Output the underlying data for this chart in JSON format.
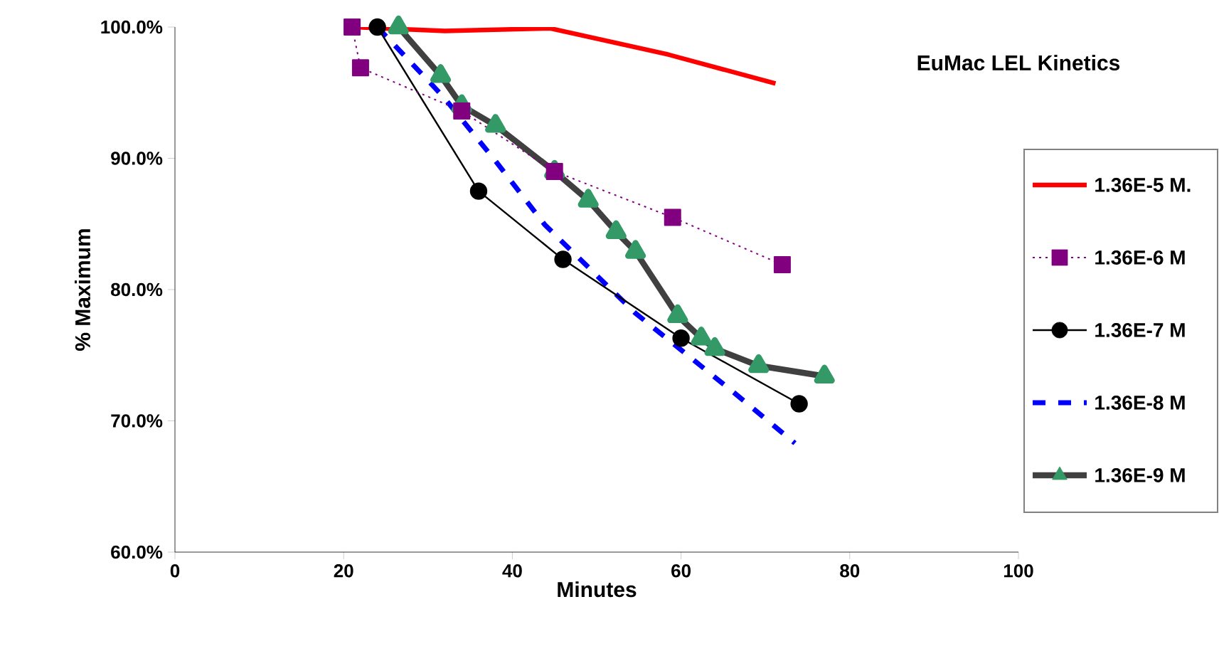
{
  "chart_data": {
    "type": "line",
    "title": "EuMac LEL Kinetics",
    "xlabel": "Minutes",
    "ylabel": "% Maximum",
    "xlim": [
      0,
      100
    ],
    "xticks": [
      0,
      20,
      40,
      60,
      80,
      100
    ],
    "ylim": [
      60,
      100
    ],
    "yticks": [
      {
        "value": 60,
        "label": "60.0%"
      },
      {
        "value": 70,
        "label": "70.0%"
      },
      {
        "value": 80,
        "label": "80.0%"
      },
      {
        "value": 90,
        "label": "90.0%"
      },
      {
        "value": 100,
        "label": "100.0%"
      }
    ],
    "legend": "right",
    "series": [
      {
        "name": "1.36E-5 M.",
        "color": "#ff0000",
        "line_style": "solid",
        "marker": "none",
        "x": [
          21,
          32,
          44.5,
          58.5,
          71.2
        ],
        "values": [
          100,
          99.7,
          99.9,
          97.9,
          95.7
        ]
      },
      {
        "name": "1.36E-6 M",
        "color": "#800080",
        "line_style": "dotted",
        "marker": "square",
        "x": [
          21,
          22,
          34,
          45,
          59,
          72
        ],
        "values": [
          100,
          96.9,
          93.6,
          89.0,
          85.5,
          81.9
        ]
      },
      {
        "name": "1.36E-7 M",
        "color": "#000000",
        "line_style": "solid",
        "marker": "circle",
        "x": [
          24,
          36,
          46,
          60,
          74
        ],
        "values": [
          100,
          87.5,
          82.3,
          76.3,
          71.3
        ]
      },
      {
        "name": "1.36E-8 M",
        "color": "#0000ff",
        "line_style": "dashed",
        "marker": "none",
        "x": [
          24,
          31.8,
          38,
          43.9,
          54.6,
          65.8,
          73.5
        ],
        "values": [
          100,
          94.7,
          89.8,
          84.9,
          78.2,
          72.4,
          68.3
        ]
      },
      {
        "name": "1.36E-9 M",
        "color": "#404040",
        "line_style": "solid",
        "marker": "triangle",
        "x": [
          26.5,
          31.5,
          34,
          38,
          45,
          49,
          52.3,
          54.6,
          59.6,
          62.4,
          64,
          69.2,
          77
        ],
        "values": [
          100,
          96.3,
          94,
          92.5,
          89.0,
          86.8,
          84.4,
          82.9,
          78.0,
          76.3,
          75.5,
          74.2,
          73.4
        ]
      }
    ]
  }
}
